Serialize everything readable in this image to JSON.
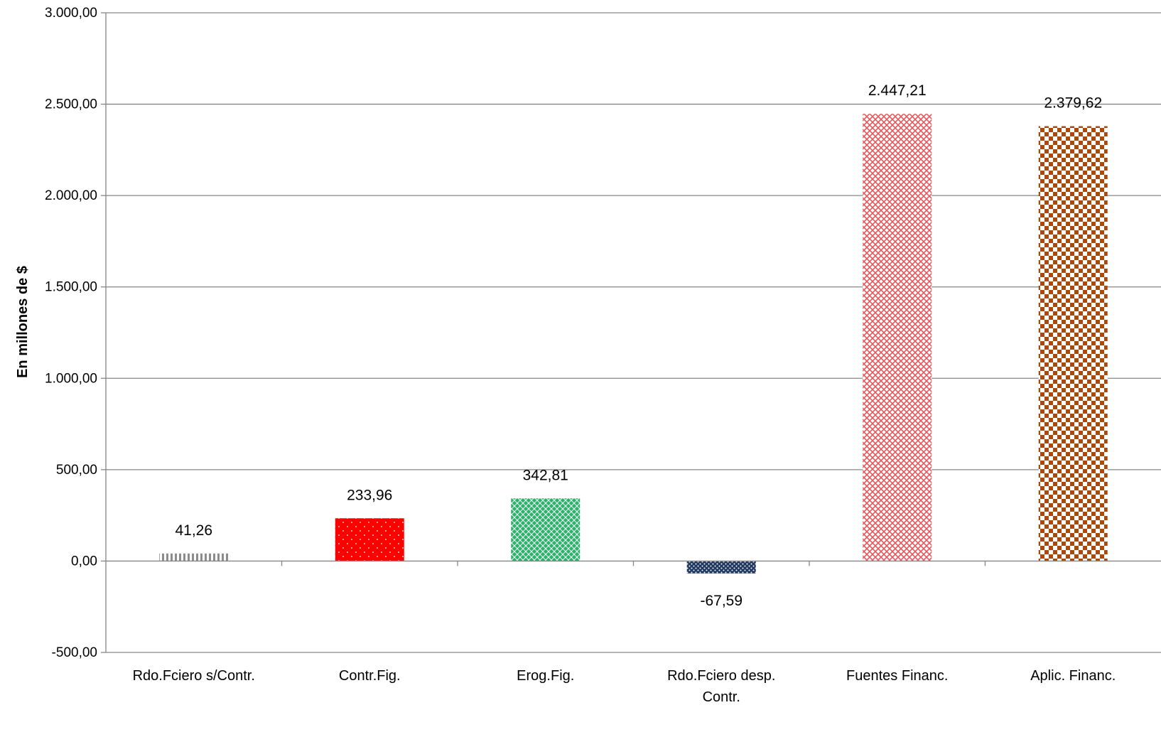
{
  "chart_data": {
    "type": "bar",
    "title": "",
    "xlabel": "",
    "ylabel": "En millones de $",
    "ylim": [
      -500,
      3000
    ],
    "ytick_step": 500,
    "yticks": [
      "-500,00",
      "0,00",
      "500,00",
      "1.000,00",
      "1.500,00",
      "2.000,00",
      "2.500,00",
      "3.000,00"
    ],
    "grid": true,
    "legend": "none",
    "categories": [
      "Rdo.Fciero s/Contr.",
      "Contr.Fig.",
      "Erog.Fig.",
      "Rdo.Fciero desp. Contr.",
      "Fuentes Financ.",
      "Aplic. Financ."
    ],
    "category_lines": [
      [
        "Rdo.Fciero s/Contr."
      ],
      [
        "Contr.Fig."
      ],
      [
        "Erog.Fig."
      ],
      [
        "Rdo.Fciero desp.",
        "Contr."
      ],
      [
        "Fuentes Financ."
      ],
      [
        "Aplic. Financ."
      ]
    ],
    "values": [
      41.26,
      233.96,
      342.81,
      -67.59,
      2447.21,
      2379.62
    ],
    "value_labels": [
      "41,26",
      "233,96",
      "342,81",
      "-67,59",
      "2.447,21",
      "2.379,62"
    ],
    "bar_colors": [
      "#8c8c8c",
      "#ff0000",
      "#2db36b",
      "#1f3864",
      "#e8585a",
      "#a84a0c"
    ],
    "bar_patterns": [
      "vertical-stripes",
      "dots",
      "diamond-lattice",
      "small-dots",
      "weave",
      "checker"
    ]
  }
}
